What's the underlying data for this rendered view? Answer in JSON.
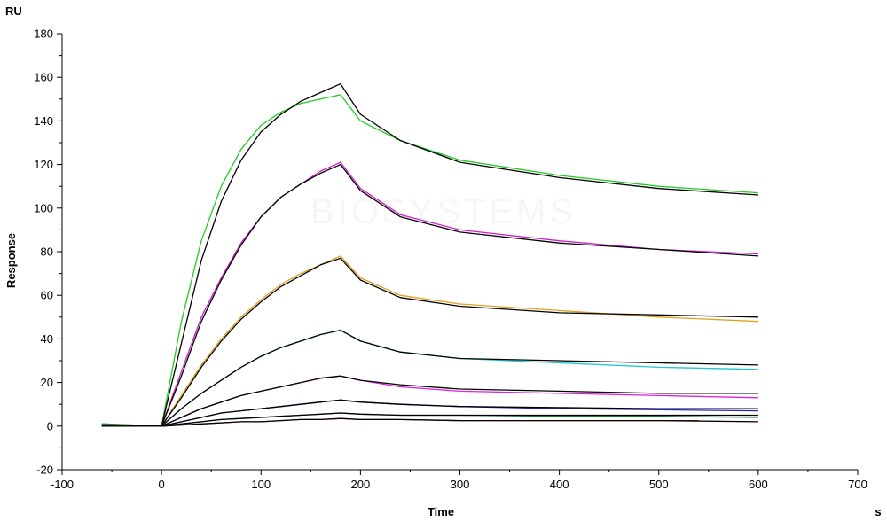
{
  "chart_data": {
    "type": "line",
    "title": "",
    "xlabel": "Time",
    "ylabel": "Response",
    "x_unit": "s",
    "y_unit": "RU",
    "xlim": [
      -100,
      700
    ],
    "ylim": [
      -20,
      180
    ],
    "x_ticks": [
      -100,
      0,
      100,
      200,
      300,
      400,
      500,
      600,
      700
    ],
    "y_ticks": [
      -20,
      0,
      20,
      40,
      60,
      80,
      100,
      120,
      140,
      160,
      180
    ],
    "watermark": "BIOSYSTEMS",
    "grid": false,
    "legend": "none",
    "series": [
      {
        "color": "#22cc22",
        "x": [
          -60,
          0,
          20,
          40,
          60,
          80,
          100,
          120,
          140,
          160,
          180,
          200,
          240,
          300,
          400,
          500,
          600
        ],
        "values": [
          1,
          0,
          48,
          85,
          110,
          127,
          138,
          144,
          148,
          150,
          152,
          140,
          131,
          122,
          115,
          110,
          107
        ]
      },
      {
        "color": "#000000",
        "x": [
          -60,
          0,
          20,
          40,
          60,
          80,
          100,
          120,
          140,
          160,
          180,
          200,
          240,
          300,
          400,
          500,
          600
        ],
        "values": [
          0,
          0,
          38,
          76,
          103,
          122,
          135,
          143,
          149,
          153,
          157,
          143,
          131,
          121,
          114,
          109,
          106
        ]
      },
      {
        "color": "#cc22cc",
        "x": [
          -60,
          0,
          20,
          40,
          60,
          80,
          100,
          120,
          140,
          160,
          180,
          200,
          240,
          300,
          400,
          500,
          600
        ],
        "values": [
          0,
          0,
          25,
          50,
          68,
          84,
          96,
          105,
          111,
          117,
          121,
          109,
          97,
          90,
          85,
          81,
          79
        ]
      },
      {
        "color": "#000000",
        "x": [
          -60,
          0,
          20,
          40,
          60,
          80,
          100,
          120,
          140,
          160,
          180,
          200,
          240,
          300,
          400,
          500,
          600
        ],
        "values": [
          0,
          0,
          23,
          48,
          67,
          83,
          96,
          105,
          111,
          116,
          120,
          108,
          96,
          89,
          84,
          81,
          78
        ]
      },
      {
        "color": "#e0a020",
        "x": [
          -60,
          0,
          20,
          40,
          60,
          80,
          100,
          120,
          140,
          160,
          180,
          200,
          240,
          300,
          400,
          500,
          600
        ],
        "values": [
          0,
          0,
          14,
          28,
          40,
          50,
          58,
          65,
          70,
          74,
          78,
          68,
          60,
          56,
          53,
          50,
          48
        ]
      },
      {
        "color": "#000000",
        "x": [
          -60,
          0,
          20,
          40,
          60,
          80,
          100,
          120,
          140,
          160,
          180,
          200,
          240,
          300,
          400,
          500,
          600
        ],
        "values": [
          0,
          0,
          13,
          27,
          39,
          49,
          57,
          64,
          69,
          74,
          77,
          67,
          59,
          55,
          52,
          51,
          50
        ]
      },
      {
        "color": "#20c8c8",
        "x": [
          -60,
          0,
          20,
          40,
          60,
          80,
          100,
          120,
          140,
          160,
          180,
          200,
          240,
          300,
          400,
          500,
          600
        ],
        "values": [
          0,
          0,
          8,
          15,
          21,
          27,
          32,
          36,
          39,
          42,
          44,
          39,
          34,
          31,
          29,
          27,
          26
        ]
      },
      {
        "color": "#000000",
        "x": [
          -60,
          0,
          20,
          40,
          60,
          80,
          100,
          120,
          140,
          160,
          180,
          200,
          240,
          300,
          400,
          500,
          600
        ],
        "values": [
          0,
          0,
          8,
          15,
          21,
          27,
          32,
          36,
          39,
          42,
          44,
          39,
          34,
          31,
          30,
          29,
          28
        ]
      },
      {
        "color": "#dd22dd",
        "x": [
          -60,
          0,
          20,
          40,
          60,
          80,
          100,
          120,
          140,
          160,
          180,
          200,
          240,
          300,
          400,
          500,
          600
        ],
        "values": [
          0,
          0,
          4,
          8,
          11,
          14,
          16,
          18,
          20,
          22,
          23,
          21,
          18,
          16,
          15,
          14,
          13
        ]
      },
      {
        "color": "#000000",
        "x": [
          -60,
          0,
          20,
          40,
          60,
          80,
          100,
          120,
          140,
          160,
          180,
          200,
          240,
          300,
          400,
          500,
          600
        ],
        "values": [
          0,
          0,
          4,
          8,
          11,
          14,
          16,
          18,
          20,
          22,
          23,
          21,
          19,
          17,
          16,
          15,
          15
        ]
      },
      {
        "color": "#2222cc",
        "x": [
          -60,
          0,
          20,
          40,
          60,
          80,
          100,
          120,
          140,
          160,
          180,
          200,
          240,
          300,
          400,
          500,
          600
        ],
        "values": [
          0,
          0,
          2,
          4,
          6,
          7,
          8,
          9,
          10,
          11,
          12,
          11,
          10,
          9,
          8,
          7.5,
          7
        ]
      },
      {
        "color": "#000000",
        "x": [
          -60,
          0,
          20,
          40,
          60,
          80,
          100,
          120,
          140,
          160,
          180,
          200,
          240,
          300,
          400,
          500,
          600
        ],
        "values": [
          0,
          0,
          2,
          4,
          6,
          7,
          8,
          9,
          10,
          11,
          12,
          11,
          10,
          9,
          8.5,
          8,
          8
        ]
      },
      {
        "color": "#208040",
        "x": [
          -60,
          0,
          20,
          40,
          60,
          80,
          100,
          120,
          140,
          160,
          180,
          200,
          240,
          300,
          400,
          500,
          600
        ],
        "values": [
          1,
          0,
          1,
          2,
          3,
          3.5,
          4,
          4.5,
          5,
          5.5,
          6,
          5.5,
          5,
          5,
          4.5,
          4.5,
          4
        ]
      },
      {
        "color": "#000000",
        "x": [
          -60,
          0,
          20,
          40,
          60,
          80,
          100,
          120,
          140,
          160,
          180,
          200,
          240,
          300,
          400,
          500,
          600
        ],
        "values": [
          0,
          0,
          1,
          2,
          3,
          3.5,
          4,
          4.5,
          5,
          5.5,
          6,
          5.5,
          5,
          5,
          5,
          5,
          5
        ]
      },
      {
        "color": "#cc2222",
        "x": [
          -60,
          0,
          20,
          40,
          60,
          80,
          100,
          120,
          140,
          160,
          180,
          200,
          240,
          300,
          400,
          500,
          540
        ],
        "values": [
          0,
          0,
          0.5,
          1,
          1.5,
          2,
          2,
          2.5,
          3,
          3,
          3.5,
          3,
          3,
          2.5,
          2.5,
          2.5,
          2.5
        ]
      },
      {
        "color": "#000000",
        "x": [
          -60,
          0,
          20,
          40,
          60,
          80,
          100,
          120,
          140,
          160,
          180,
          200,
          240,
          300,
          400,
          500,
          600
        ],
        "values": [
          0,
          0,
          0.5,
          1,
          1.5,
          2,
          2,
          2.5,
          3,
          3,
          3.5,
          3,
          3,
          2.5,
          2.5,
          2.5,
          2
        ]
      }
    ]
  }
}
